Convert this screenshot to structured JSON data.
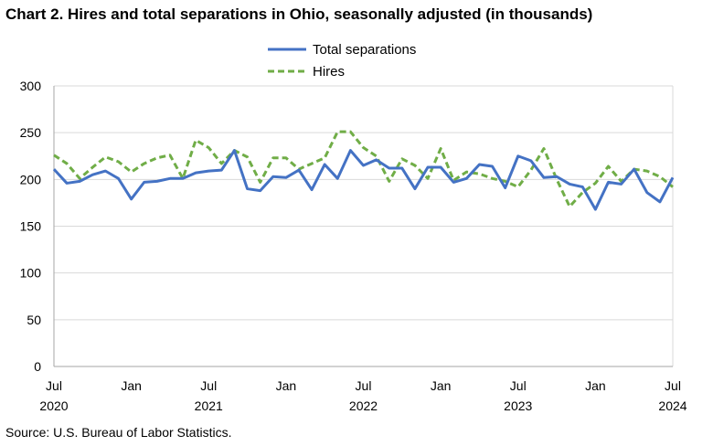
{
  "chart_data": {
    "type": "line",
    "title": "Chart 2. Hires and total separations in Ohio, seasonally adjusted (in thousands)",
    "source": "Source: U.S. Bureau of Labor Statistics.",
    "ylim": [
      0,
      300
    ],
    "yticks": [
      0,
      50,
      100,
      150,
      200,
      250,
      300
    ],
    "grid": true,
    "legend_position": "top-center",
    "x_ticks": [
      {
        "index": 0,
        "month": "Jul",
        "year": "2020"
      },
      {
        "index": 6,
        "month": "Jan",
        "year": ""
      },
      {
        "index": 12,
        "month": "Jul",
        "year": "2021"
      },
      {
        "index": 18,
        "month": "Jan",
        "year": ""
      },
      {
        "index": 24,
        "month": "Jul",
        "year": "2022"
      },
      {
        "index": 30,
        "month": "Jan",
        "year": ""
      },
      {
        "index": 36,
        "month": "Jul",
        "year": "2023"
      },
      {
        "index": 42,
        "month": "Jan",
        "year": ""
      },
      {
        "index": 48,
        "month": "Jul",
        "year": "2024"
      }
    ],
    "x": [
      "2020-07",
      "2020-08",
      "2020-09",
      "2020-10",
      "2020-11",
      "2020-12",
      "2021-01",
      "2021-02",
      "2021-03",
      "2021-04",
      "2021-05",
      "2021-06",
      "2021-07",
      "2021-08",
      "2021-09",
      "2021-10",
      "2021-11",
      "2021-12",
      "2022-01",
      "2022-02",
      "2022-03",
      "2022-04",
      "2022-05",
      "2022-06",
      "2022-07",
      "2022-08",
      "2022-09",
      "2022-10",
      "2022-11",
      "2022-12",
      "2023-01",
      "2023-02",
      "2023-03",
      "2023-04",
      "2023-05",
      "2023-06",
      "2023-07",
      "2023-08",
      "2023-09",
      "2023-10",
      "2023-11",
      "2023-12",
      "2024-01",
      "2024-02",
      "2024-03",
      "2024-04",
      "2024-05",
      "2024-06",
      "2024-07"
    ],
    "series": [
      {
        "name": "Total separations",
        "color": "#4472c4",
        "dash": "solid",
        "values": [
          211,
          196,
          198,
          205,
          209,
          201,
          179,
          197,
          198,
          201,
          201,
          207,
          209,
          210,
          231,
          190,
          188,
          203,
          202,
          210,
          189,
          216,
          201,
          231,
          215,
          221,
          212,
          212,
          190,
          213,
          213,
          197,
          201,
          216,
          214,
          191,
          225,
          220,
          202,
          203,
          195,
          192,
          168,
          197,
          195,
          211,
          186,
          176,
          202
        ]
      },
      {
        "name": "Hires",
        "color": "#70ad47",
        "dash": "dashed",
        "values": [
          226,
          217,
          201,
          213,
          224,
          219,
          208,
          217,
          223,
          226,
          201,
          242,
          234,
          217,
          231,
          224,
          197,
          223,
          223,
          211,
          217,
          223,
          251,
          251,
          234,
          225,
          198,
          222,
          215,
          201,
          233,
          199,
          208,
          206,
          201,
          198,
          192,
          210,
          233,
          200,
          171,
          186,
          196,
          214,
          198,
          211,
          209,
          203,
          192
        ]
      }
    ]
  }
}
